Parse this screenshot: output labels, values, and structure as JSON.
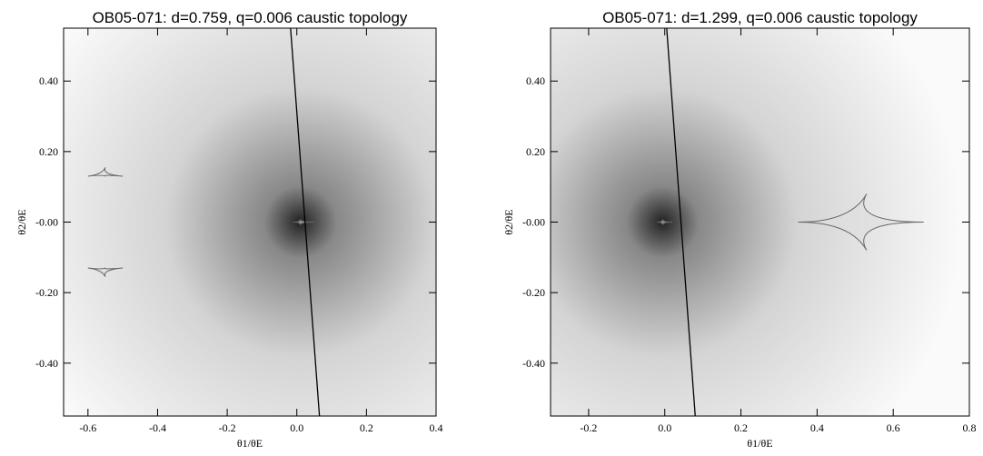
{
  "chart_data": [
    {
      "type": "caustic-map",
      "title": "OB05-071: d=0.759, q=0.006 caustic topology",
      "xlabel": "θ1/θE",
      "ylabel": "θ2/θE",
      "xlim": [
        -0.67,
        0.4
      ],
      "ylim": [
        -0.55,
        0.55
      ],
      "xticks": [
        -0.6,
        -0.4,
        -0.2,
        {
          "value": 0,
          "label": "0.0"
        },
        0.2,
        0.4
      ],
      "yticks": [
        {
          "value": 0.4,
          "label": "0.40"
        },
        {
          "value": 0.2,
          "label": "0.20"
        },
        {
          "value": 0,
          "label": "-0.00"
        },
        {
          "value": -0.2,
          "label": "-0.20"
        },
        {
          "value": -0.4,
          "label": "-0.40"
        }
      ],
      "trajectory": {
        "x": [
          -0.018,
          0.065
        ],
        "y": [
          0.55,
          -0.55
        ]
      },
      "caustics": [
        {
          "x": [
            -0.01,
            0.01,
            0.05,
            0.01,
            -0.01
          ],
          "y": [
            0,
            0.008,
            0,
            -0.008,
            0
          ]
        },
        {
          "x": [
            -0.6,
            -0.55,
            -0.5,
            -0.55,
            -0.6
          ],
          "y": [
            0.13,
            0.155,
            0.13,
            0.13,
            0.13
          ]
        },
        {
          "x": [
            -0.6,
            -0.55,
            -0.5,
            -0.55,
            -0.6
          ],
          "y": [
            -0.13,
            -0.155,
            -0.13,
            -0.13,
            -0.13
          ]
        }
      ]
    },
    {
      "type": "caustic-map",
      "title": "OB05-071: d=1.299, q=0.006 caustic topology",
      "xlabel": "θ1/θE",
      "ylabel": "θ2/θE",
      "xlim": [
        -0.3,
        0.8
      ],
      "ylim": [
        -0.55,
        0.55
      ],
      "xticks": [
        -0.2,
        {
          "value": 0,
          "label": "0.0"
        },
        0.2,
        0.4,
        0.6,
        0.8
      ],
      "yticks": [
        {
          "value": 0.4,
          "label": "0.40"
        },
        {
          "value": 0.2,
          "label": "0.20"
        },
        {
          "value": 0,
          "label": "-0.00"
        },
        {
          "value": -0.2,
          "label": "-0.20"
        },
        {
          "value": -0.4,
          "label": "-0.40"
        }
      ],
      "trajectory": {
        "x": [
          0.005,
          0.08
        ],
        "y": [
          0.55,
          -0.55
        ]
      },
      "caustics": [
        {
          "x": [
            -0.02,
            -0.005,
            0.02,
            -0.005,
            -0.02
          ],
          "y": [
            0,
            0.008,
            0,
            -0.008,
            0
          ]
        },
        {
          "x": [
            0.35,
            0.53,
            0.68,
            0.53,
            0.35
          ],
          "y": [
            0,
            0.08,
            0,
            -0.08,
            0
          ]
        }
      ]
    }
  ]
}
